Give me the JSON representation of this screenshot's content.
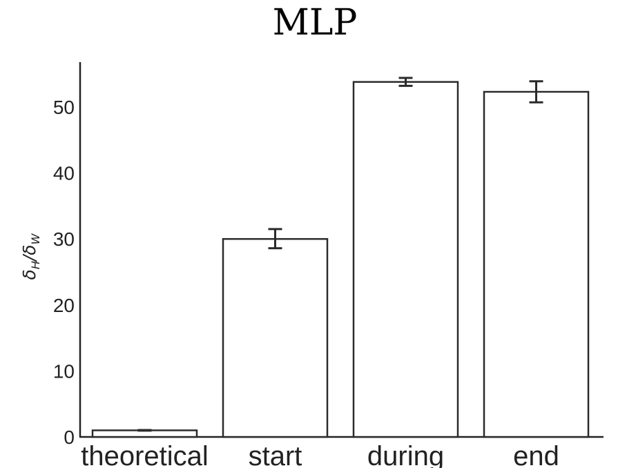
{
  "chart_data": {
    "type": "bar",
    "title": "MLP",
    "xlabel": "",
    "ylabel": "δH/δW",
    "ylabel_parts": {
      "base1": "δ",
      "sub1": "H",
      "slash": "/",
      "base2": "δ",
      "sub2": "W"
    },
    "categories": [
      "theoretical",
      "start",
      "during",
      "end"
    ],
    "values": [
      1.0,
      30.0,
      53.8,
      52.3
    ],
    "error_low": [
      0.95,
      28.6,
      53.2,
      50.7
    ],
    "error_high": [
      1.05,
      31.5,
      54.4,
      53.9
    ],
    "ylim": [
      0,
      57
    ],
    "yticks": [
      "0",
      "10",
      "20",
      "30",
      "40",
      "50"
    ],
    "grid": false,
    "bar_fill": "#ffffff",
    "bar_edge": "#2a2a2a"
  }
}
